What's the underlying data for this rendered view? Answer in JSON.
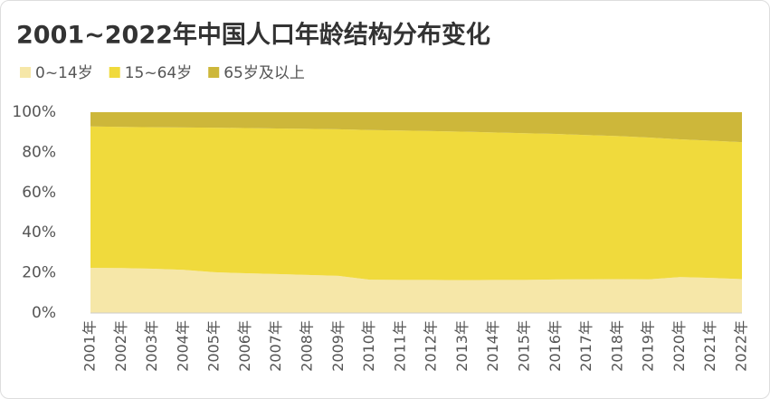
{
  "chart_data": {
    "type": "stacked_area",
    "title": "2001~2022年中国人口年龄结构分布变化",
    "categories": [
      "2001年",
      "2002年",
      "2003年",
      "2004年",
      "2005年",
      "2006年",
      "2007年",
      "2008年",
      "2009年",
      "2010年",
      "2011年",
      "2012年",
      "2013年",
      "2014年",
      "2015年",
      "2016年",
      "2017年",
      "2018年",
      "2019年",
      "2020年",
      "2021年",
      "2022年"
    ],
    "series": [
      {
        "name": "0~14岁",
        "color": "#f6e7a8",
        "values": [
          22.5,
          22.4,
          22.1,
          21.5,
          20.3,
          19.8,
          19.4,
          19.0,
          18.5,
          16.6,
          16.5,
          16.5,
          16.4,
          16.5,
          16.5,
          16.7,
          16.8,
          16.9,
          16.8,
          17.9,
          17.5,
          16.9
        ]
      },
      {
        "name": "15~64岁",
        "color": "#f0da3c",
        "values": [
          70.4,
          70.3,
          70.4,
          70.9,
          72.0,
          72.3,
          72.5,
          72.7,
          73.0,
          74.5,
          74.4,
          74.1,
          73.9,
          73.4,
          73.0,
          72.5,
          71.8,
          71.2,
          70.6,
          68.6,
          68.3,
          68.2
        ]
      },
      {
        "name": "65岁及以上",
        "color": "#cdb73a",
        "values": [
          7.1,
          7.3,
          7.5,
          7.6,
          7.7,
          7.9,
          8.1,
          8.3,
          8.5,
          8.9,
          9.1,
          9.4,
          9.7,
          10.1,
          10.5,
          10.8,
          11.4,
          11.9,
          12.6,
          13.5,
          14.2,
          14.9
        ]
      }
    ],
    "ylim": [
      0,
      100
    ],
    "yticks": [
      {
        "value": 0,
        "label": "0%"
      },
      {
        "value": 20,
        "label": "20%"
      },
      {
        "value": 40,
        "label": "40%"
      },
      {
        "value": 60,
        "label": "60%"
      },
      {
        "value": 80,
        "label": "80%"
      },
      {
        "value": 100,
        "label": "100%"
      }
    ]
  }
}
